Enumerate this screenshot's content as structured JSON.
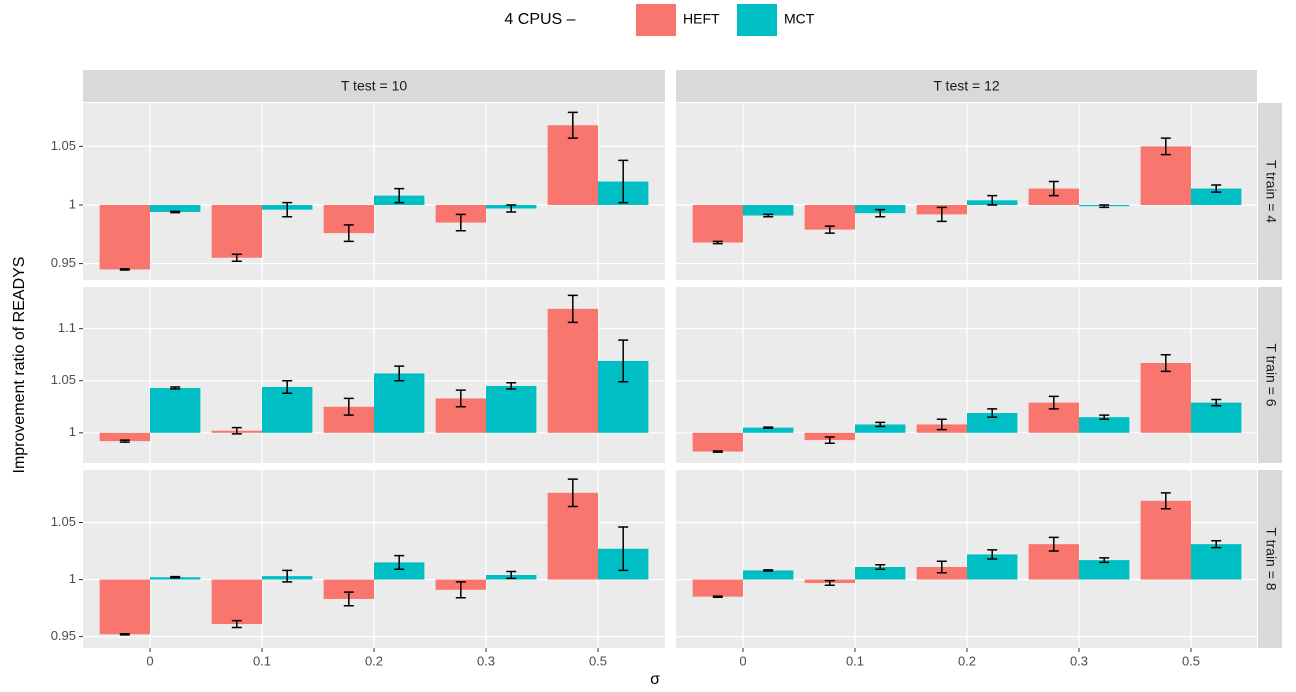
{
  "chart_data": {
    "type": "bar",
    "legend_title": "4 CPUS –",
    "legend": [
      {
        "name": "HEFT",
        "color": "#F8766D"
      },
      {
        "name": "MCT",
        "color": "#00BFC4"
      }
    ],
    "x_label": "σ",
    "y_label": "Improvement ratio of READYS",
    "categories": [
      "0",
      "0.1",
      "0.2",
      "0.3",
      "0.5"
    ],
    "baseline": 1,
    "grid": true,
    "columns": [
      "T test = 10",
      "T test = 12"
    ],
    "rows": [
      {
        "label": "T train = 4",
        "ylim": [
          0.936,
          1.087
        ],
        "yticks": [
          0.95,
          1,
          1.05
        ],
        "panels": [
          {
            "series": [
              {
                "values": [
                  0.945,
                  0.955,
                  0.976,
                  0.985,
                  1.068
                ],
                "errors": [
                  0.0005,
                  0.003,
                  0.007,
                  0.007,
                  0.011
                ]
              },
              {
                "values": [
                  0.994,
                  0.996,
                  1.008,
                  0.997,
                  1.02
                ],
                "errors": [
                  0.0005,
                  0.006,
                  0.006,
                  0.003,
                  0.018
                ]
              }
            ]
          },
          {
            "series": [
              {
                "values": [
                  0.968,
                  0.979,
                  0.992,
                  1.014,
                  1.05
                ],
                "errors": [
                  0.001,
                  0.003,
                  0.006,
                  0.006,
                  0.007
                ]
              },
              {
                "values": [
                  0.991,
                  0.993,
                  1.004,
                  0.999,
                  1.014
                ],
                "errors": [
                  0.001,
                  0.003,
                  0.004,
                  0.001,
                  0.003
                ]
              }
            ]
          }
        ]
      },
      {
        "label": "T train = 6",
        "ylim": [
          0.971,
          1.14
        ],
        "yticks": [
          1,
          1.05,
          1.1
        ],
        "panels": [
          {
            "series": [
              {
                "values": [
                  0.992,
                  1.002,
                  1.025,
                  1.033,
                  1.119
                ],
                "errors": [
                  0.001,
                  0.003,
                  0.008,
                  0.008,
                  0.013
                ]
              },
              {
                "values": [
                  1.043,
                  1.044,
                  1.057,
                  1.045,
                  1.069
                ],
                "errors": [
                  0.001,
                  0.006,
                  0.007,
                  0.003,
                  0.02
                ]
              }
            ]
          },
          {
            "series": [
              {
                "values": [
                  0.982,
                  0.993,
                  1.008,
                  1.029,
                  1.067
                ],
                "errors": [
                  0.0005,
                  0.003,
                  0.005,
                  0.006,
                  0.008
                ]
              },
              {
                "values": [
                  1.005,
                  1.008,
                  1.019,
                  1.015,
                  1.029
                ],
                "errors": [
                  0.0005,
                  0.002,
                  0.004,
                  0.002,
                  0.003
                ]
              }
            ]
          }
        ]
      },
      {
        "label": "T train = 8",
        "ylim": [
          0.94,
          1.096
        ],
        "yticks": [
          0.95,
          1,
          1.05
        ],
        "panels": [
          {
            "series": [
              {
                "values": [
                  0.952,
                  0.961,
                  0.983,
                  0.991,
                  1.076
                ],
                "errors": [
                  0.0005,
                  0.003,
                  0.006,
                  0.007,
                  0.012
                ]
              },
              {
                "values": [
                  1.002,
                  1.003,
                  1.015,
                  1.004,
                  1.027
                ],
                "errors": [
                  0.0005,
                  0.005,
                  0.006,
                  0.003,
                  0.019
                ]
              }
            ]
          },
          {
            "series": [
              {
                "values": [
                  0.985,
                  0.997,
                  1.011,
                  1.031,
                  1.069
                ],
                "errors": [
                  0.0005,
                  0.002,
                  0.005,
                  0.006,
                  0.007
                ]
              },
              {
                "values": [
                  1.008,
                  1.011,
                  1.022,
                  1.017,
                  1.031
                ],
                "errors": [
                  0.0005,
                  0.002,
                  0.004,
                  0.002,
                  0.003
                ]
              }
            ]
          }
        ]
      }
    ]
  }
}
